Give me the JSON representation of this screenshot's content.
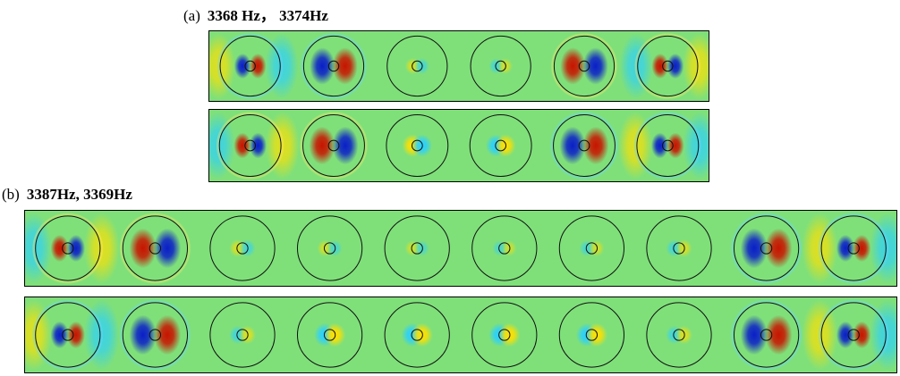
{
  "figure": {
    "colors": {
      "background": "#7fe07a",
      "positive": "#c81400",
      "negative": "#0a1ec8",
      "frame": "#000000"
    },
    "panel_a": {
      "tag": "(a)",
      "frequencies": "3368 Hz， 3374Hz",
      "cell_count": 6,
      "modes": [
        {
          "name": "mode-1",
          "cells": [
            {
              "lobe": -1,
              "amp": 1.0,
              "outer": true
            },
            {
              "lobe": -1,
              "amp": 1.0,
              "outer": false
            },
            {
              "lobe": 1,
              "amp": 0.12,
              "outer": false
            },
            {
              "lobe": -1,
              "amp": 0.1,
              "outer": false
            },
            {
              "lobe": 1,
              "amp": 1.0,
              "outer": false
            },
            {
              "lobe": 1,
              "amp": 1.0,
              "outer": true
            }
          ]
        },
        {
          "name": "mode-2",
          "cells": [
            {
              "lobe": 1,
              "amp": 1.0,
              "outer": true
            },
            {
              "lobe": 1,
              "amp": 1.0,
              "outer": false
            },
            {
              "lobe": 1,
              "amp": 0.35,
              "outer": false
            },
            {
              "lobe": -1,
              "amp": 0.35,
              "outer": false
            },
            {
              "lobe": -1,
              "amp": 1.0,
              "outer": false
            },
            {
              "lobe": -1,
              "amp": 1.0,
              "outer": true
            }
          ]
        }
      ]
    },
    "panel_b": {
      "tag": "(b)",
      "frequencies": "3387Hz, 3369Hz",
      "cell_count": 10,
      "modes": [
        {
          "name": "mode-1",
          "cells": [
            {
              "lobe": 1,
              "amp": 1.0,
              "outer": true
            },
            {
              "lobe": 1,
              "amp": 1.0,
              "outer": false
            },
            {
              "lobe": 1,
              "amp": 0.12,
              "outer": false
            },
            {
              "lobe": 1,
              "amp": 0.08,
              "outer": false
            },
            {
              "lobe": 1,
              "amp": 0.05,
              "outer": false
            },
            {
              "lobe": -1,
              "amp": 0.05,
              "outer": false
            },
            {
              "lobe": -1,
              "amp": 0.08,
              "outer": false
            },
            {
              "lobe": -1,
              "amp": 0.12,
              "outer": false
            },
            {
              "lobe": -1,
              "amp": 1.0,
              "outer": false
            },
            {
              "lobe": -1,
              "amp": 1.0,
              "outer": true
            }
          ]
        },
        {
          "name": "mode-2",
          "cells": [
            {
              "lobe": -1,
              "amp": 1.0,
              "outer": true
            },
            {
              "lobe": -1,
              "amp": 1.0,
              "outer": false
            },
            {
              "lobe": -1,
              "amp": 0.15,
              "outer": false
            },
            {
              "lobe": -1,
              "amp": 0.35,
              "outer": false
            },
            {
              "lobe": -1,
              "amp": 0.35,
              "outer": false
            },
            {
              "lobe": -1,
              "amp": 0.35,
              "outer": false
            },
            {
              "lobe": -1,
              "amp": 0.35,
              "outer": false
            },
            {
              "lobe": -1,
              "amp": 0.15,
              "outer": false
            },
            {
              "lobe": -1,
              "amp": 1.0,
              "outer": false
            },
            {
              "lobe": -1,
              "amp": 1.0,
              "outer": true
            }
          ]
        }
      ]
    }
  }
}
